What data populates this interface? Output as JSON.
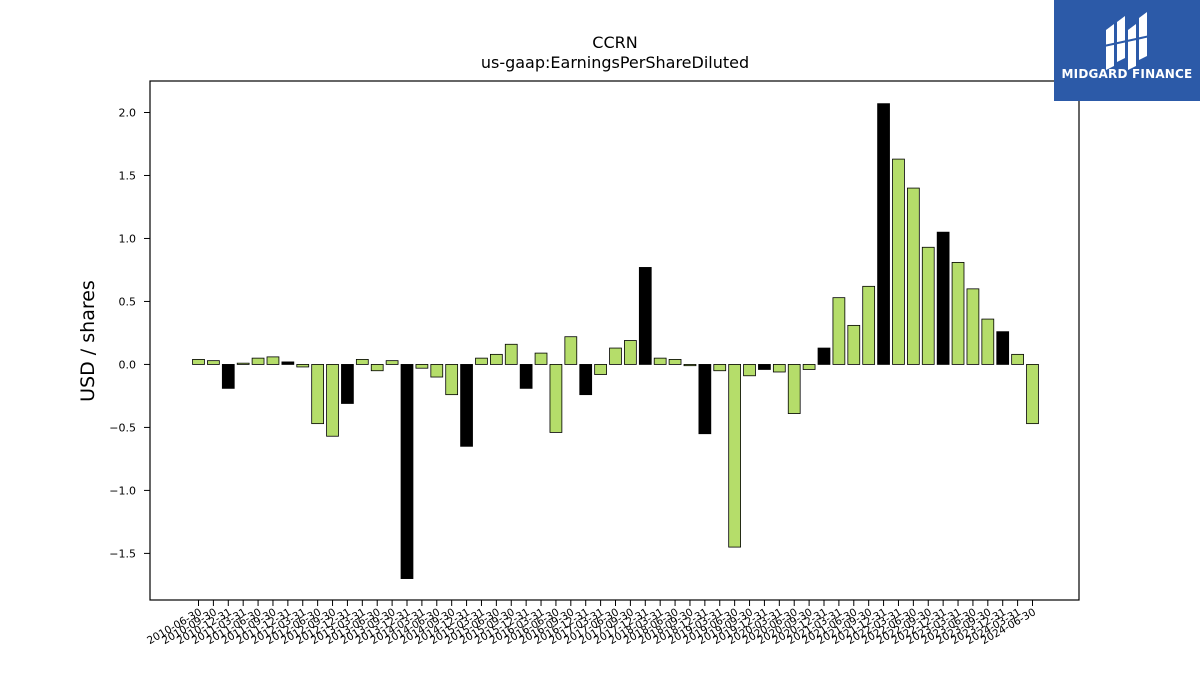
{
  "brand": {
    "name": "MIDGARD FINANCE",
    "bg_color": "#2c5aa8",
    "icon": "midgard-logo-icon"
  },
  "colors": {
    "bar_default": "#b5dd6a",
    "bar_highlight": "#000000",
    "bar_edge": "#000000"
  },
  "chart_data": {
    "type": "bar",
    "title": "CCRN",
    "subtitle": "us-gaap:EarningsPerShareDiluted",
    "xlabel": "",
    "ylabel": "USD / shares",
    "ylim": [
      -1.87,
      2.25
    ],
    "yticks": [
      -1.5,
      -1.0,
      -0.5,
      0.0,
      0.5,
      1.0,
      1.5,
      2.0
    ],
    "ytick_labels": [
      "−1.5",
      "−1.0",
      "−0.5",
      "0.0",
      "0.5",
      "1.0",
      "1.5",
      "2.0"
    ],
    "grid": false,
    "categories": [
      "2010-06-30",
      "2010-09-30",
      "2010-12-31",
      "2011-03-31",
      "2011-06-30",
      "2011-09-30",
      "2011-12-31",
      "2012-03-31",
      "2012-06-30",
      "2012-09-30",
      "2012-12-31",
      "2013-03-31",
      "2013-06-30",
      "2013-09-30",
      "2013-12-31",
      "2014-03-31",
      "2014-06-30",
      "2014-09-30",
      "2014-12-31",
      "2015-03-31",
      "2015-06-30",
      "2015-09-30",
      "2015-12-31",
      "2016-03-31",
      "2016-06-30",
      "2016-09-30",
      "2016-12-31",
      "2017-03-31",
      "2017-06-30",
      "2017-09-30",
      "2017-12-31",
      "2018-03-31",
      "2018-06-30",
      "2018-09-30",
      "2018-12-31",
      "2019-03-31",
      "2019-06-30",
      "2019-09-30",
      "2019-12-31",
      "2020-03-31",
      "2020-06-30",
      "2020-09-30",
      "2020-12-31",
      "2021-03-31",
      "2021-06-30",
      "2021-09-30",
      "2021-12-31",
      "2022-03-31",
      "2022-06-30",
      "2022-09-30",
      "2022-12-31",
      "2023-03-31",
      "2023-06-30",
      "2023-09-30",
      "2023-12-31",
      "2024-03-31",
      "2024-06-30"
    ],
    "values": [
      0.04,
      0.03,
      -0.19,
      0.01,
      0.05,
      0.06,
      0.02,
      -0.02,
      -0.47,
      -0.57,
      -0.31,
      0.04,
      -0.05,
      0.03,
      -1.7,
      -0.03,
      -0.1,
      -0.24,
      -0.65,
      0.05,
      0.08,
      0.16,
      -0.19,
      0.09,
      -0.54,
      0.22,
      -0.24,
      -0.08,
      0.13,
      0.19,
      0.77,
      0.05,
      0.04,
      -0.01,
      -0.55,
      -0.05,
      -1.45,
      -0.09,
      -0.04,
      -0.06,
      -0.39,
      -0.04,
      0.13,
      0.53,
      0.31,
      0.62,
      2.07,
      1.63,
      1.4,
      0.93,
      1.05,
      0.81,
      0.6,
      0.36,
      0.26,
      0.08,
      -0.47
    ],
    "highlighted": [
      false,
      false,
      true,
      false,
      false,
      false,
      true,
      false,
      false,
      false,
      true,
      false,
      false,
      false,
      true,
      false,
      false,
      false,
      true,
      false,
      false,
      false,
      true,
      false,
      false,
      false,
      true,
      false,
      false,
      false,
      true,
      false,
      false,
      false,
      true,
      false,
      false,
      false,
      true,
      false,
      false,
      false,
      true,
      false,
      false,
      false,
      true,
      false,
      false,
      false,
      true,
      false,
      false,
      false,
      true,
      false,
      false
    ]
  }
}
